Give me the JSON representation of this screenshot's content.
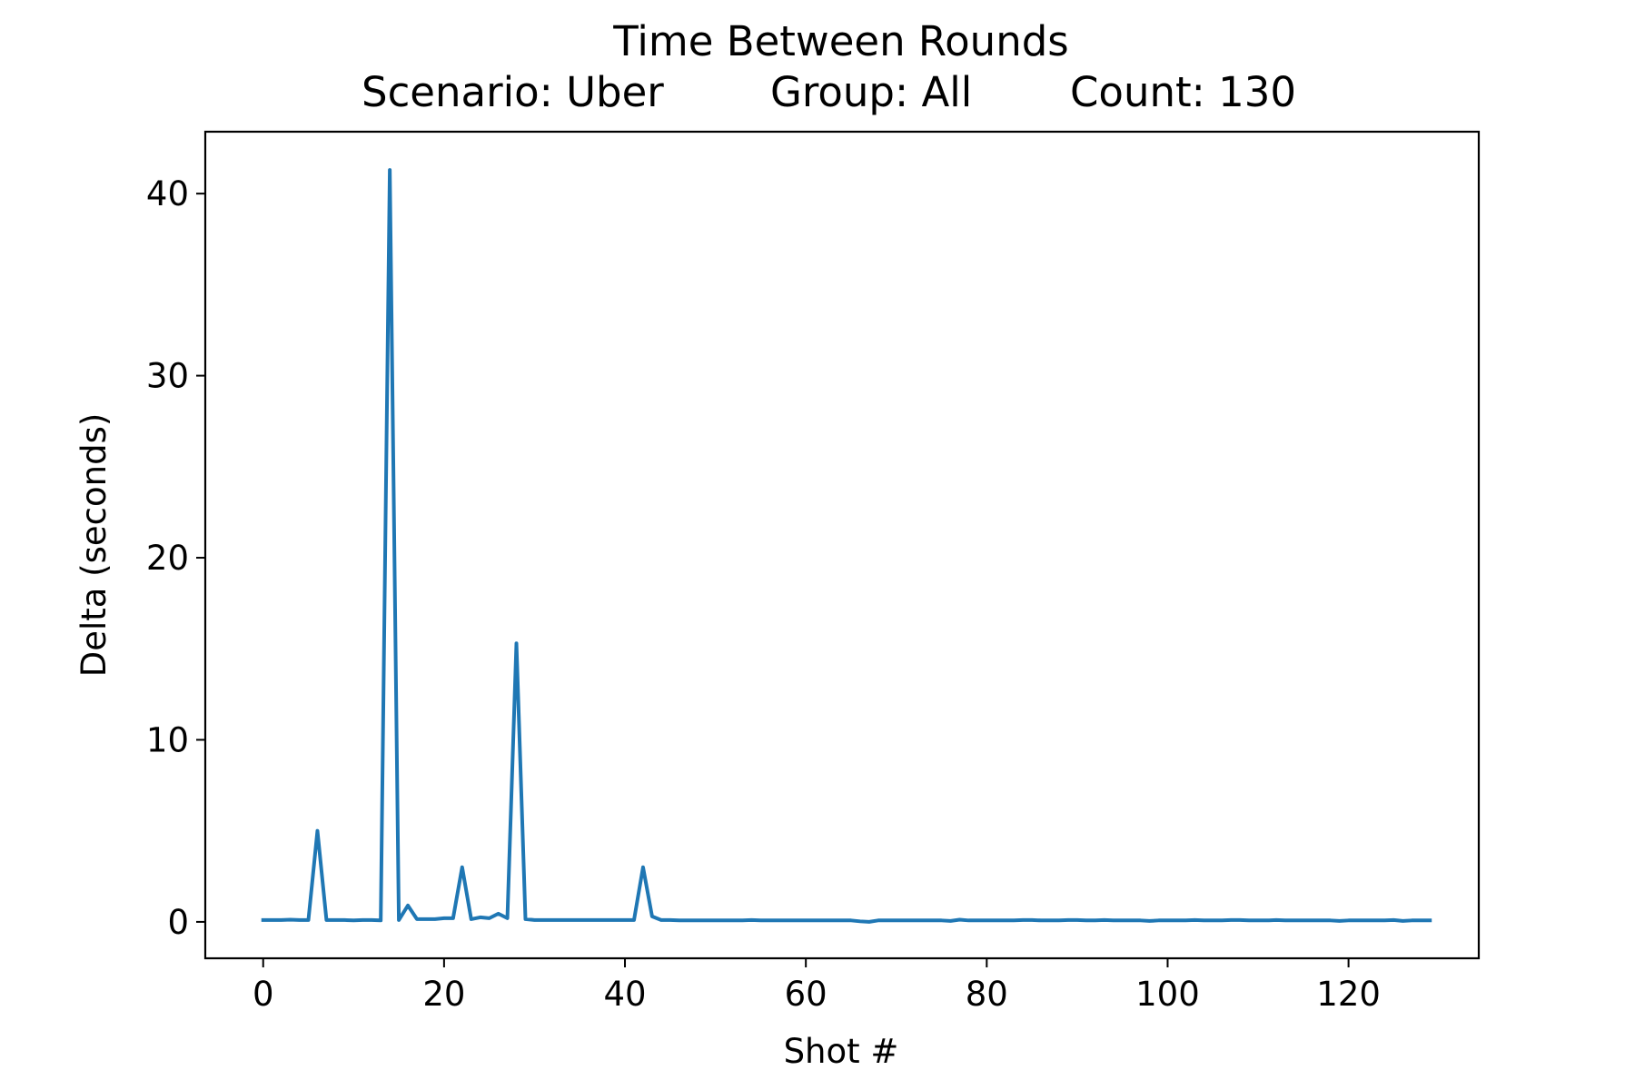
{
  "chart_data": {
    "type": "line",
    "title": "Time Between Rounds",
    "subtitle_parts": [
      "Scenario: Uber",
      "Group: All",
      "Count: 130"
    ],
    "xlabel": "Shot #",
    "ylabel": "Delta (seconds)",
    "xlim": [
      -6.4,
      134.4
    ],
    "ylim": [
      -2.0,
      43.4
    ],
    "x_ticks": [
      0,
      20,
      40,
      60,
      80,
      100,
      120
    ],
    "y_ticks": [
      0,
      10,
      20,
      30,
      40
    ],
    "grid": false,
    "line_color": "#1f77b4",
    "series": [
      {
        "values": [
          0.1,
          0.1,
          0.1,
          0.12,
          0.1,
          0.1,
          5.0,
          0.1,
          0.1,
          0.1,
          0.08,
          0.1,
          0.1,
          0.08,
          41.3,
          0.1,
          0.9,
          0.15,
          0.15,
          0.15,
          0.2,
          0.2,
          3.0,
          0.15,
          0.25,
          0.2,
          0.45,
          0.2,
          15.3,
          0.15,
          0.1,
          0.1,
          0.1,
          0.1,
          0.1,
          0.1,
          0.1,
          0.1,
          0.1,
          0.1,
          0.1,
          0.1,
          3.0,
          0.3,
          0.1,
          0.1,
          0.08,
          0.08,
          0.08,
          0.08,
          0.08,
          0.08,
          0.08,
          0.08,
          0.1,
          0.08,
          0.08,
          0.08,
          0.08,
          0.08,
          0.08,
          0.08,
          0.08,
          0.08,
          0.08,
          0.08,
          0.03,
          0.0,
          0.08,
          0.08,
          0.08,
          0.08,
          0.08,
          0.08,
          0.08,
          0.08,
          0.05,
          0.12,
          0.08,
          0.08,
          0.08,
          0.08,
          0.08,
          0.08,
          0.1,
          0.1,
          0.08,
          0.08,
          0.08,
          0.1,
          0.1,
          0.08,
          0.08,
          0.1,
          0.08,
          0.08,
          0.08,
          0.08,
          0.05,
          0.08,
          0.08,
          0.08,
          0.08,
          0.1,
          0.08,
          0.08,
          0.08,
          0.1,
          0.1,
          0.08,
          0.08,
          0.08,
          0.1,
          0.08,
          0.08,
          0.08,
          0.08,
          0.08,
          0.08,
          0.05,
          0.08,
          0.08,
          0.08,
          0.08,
          0.08,
          0.1,
          0.05,
          0.08,
          0.08,
          0.08
        ]
      }
    ]
  }
}
